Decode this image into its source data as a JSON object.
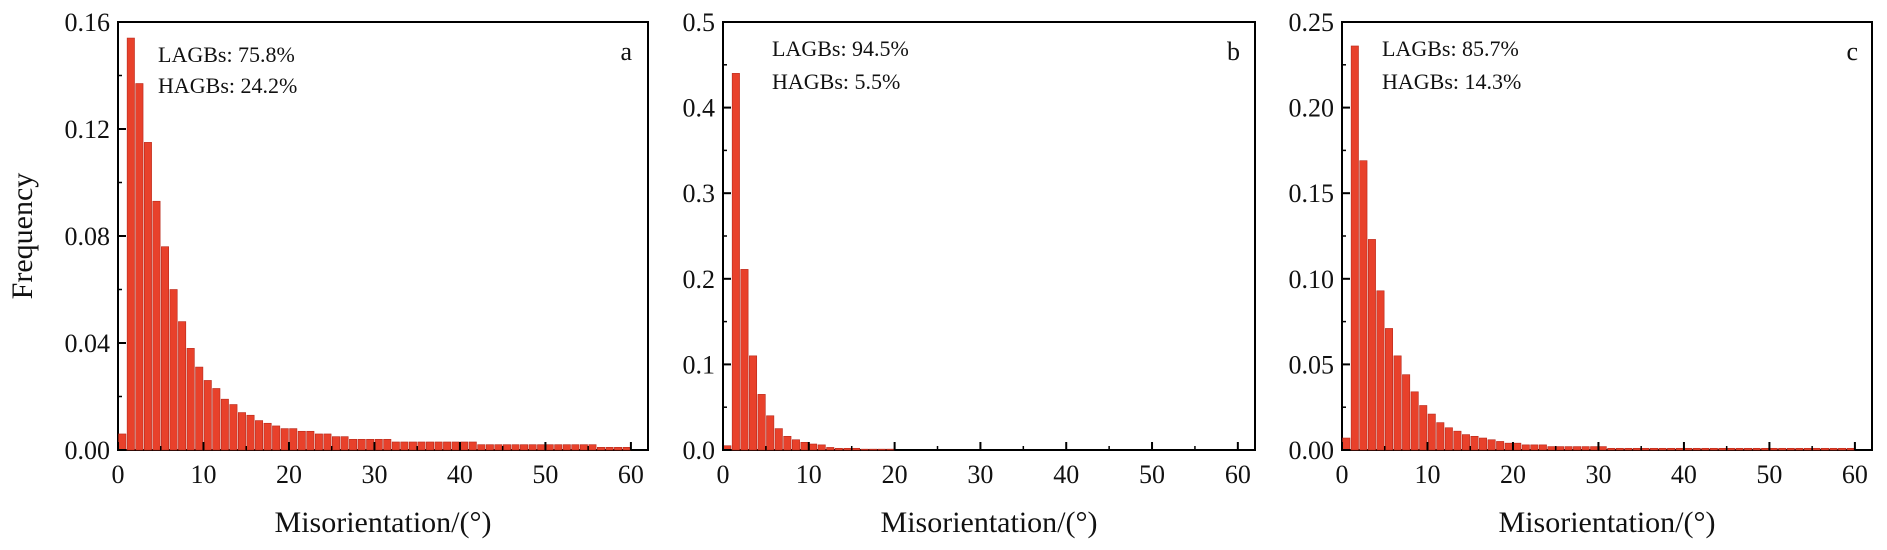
{
  "figure": {
    "bar_color": "#e8412b",
    "bar_edge_color": "#b8281a",
    "axis_color": "#000000"
  },
  "chart_data": [
    {
      "type": "bar",
      "panel": "a",
      "xlabel": "Misorientation/(°)",
      "ylabel": "Frequency",
      "xlim": [
        0,
        62
      ],
      "ylim": [
        0,
        0.16
      ],
      "xticks": [
        0,
        10,
        20,
        30,
        40,
        50,
        60
      ],
      "yticks": [
        0.0,
        0.04,
        0.08,
        0.12,
        0.16
      ],
      "ytick_labels": [
        "0.00",
        "0.04",
        "0.08",
        "0.12",
        "0.16"
      ],
      "annotations": [
        "LAGBs: 75.8%",
        "HAGBs: 24.2%"
      ],
      "bin_width": 1,
      "x": [
        0.5,
        1.5,
        2.5,
        3.5,
        4.5,
        5.5,
        6.5,
        7.5,
        8.5,
        9.5,
        10.5,
        11.5,
        12.5,
        13.5,
        14.5,
        15.5,
        16.5,
        17.5,
        18.5,
        19.5,
        20.5,
        21.5,
        22.5,
        23.5,
        24.5,
        25.5,
        26.5,
        27.5,
        28.5,
        29.5,
        30.5,
        31.5,
        32.5,
        33.5,
        34.5,
        35.5,
        36.5,
        37.5,
        38.5,
        39.5,
        40.5,
        41.5,
        42.5,
        43.5,
        44.5,
        45.5,
        46.5,
        47.5,
        48.5,
        49.5,
        50.5,
        51.5,
        52.5,
        53.5,
        54.5,
        55.5,
        56.5,
        57.5,
        58.5,
        59.5
      ],
      "values": [
        0.006,
        0.154,
        0.137,
        0.115,
        0.093,
        0.076,
        0.06,
        0.048,
        0.038,
        0.031,
        0.026,
        0.023,
        0.019,
        0.017,
        0.014,
        0.013,
        0.011,
        0.01,
        0.009,
        0.008,
        0.008,
        0.007,
        0.007,
        0.006,
        0.006,
        0.005,
        0.005,
        0.004,
        0.004,
        0.004,
        0.004,
        0.004,
        0.003,
        0.003,
        0.003,
        0.003,
        0.003,
        0.003,
        0.003,
        0.003,
        0.003,
        0.003,
        0.002,
        0.002,
        0.002,
        0.002,
        0.002,
        0.002,
        0.002,
        0.002,
        0.002,
        0.002,
        0.002,
        0.002,
        0.002,
        0.002,
        0.001,
        0.001,
        0.001,
        0.001
      ]
    },
    {
      "type": "bar",
      "panel": "b",
      "xlabel": "Misorientation/(°)",
      "ylabel": "",
      "xlim": [
        0,
        62
      ],
      "ylim": [
        0,
        0.5
      ],
      "xticks": [
        0,
        10,
        20,
        30,
        40,
        50,
        60
      ],
      "yticks": [
        0.0,
        0.1,
        0.2,
        0.3,
        0.4,
        0.5
      ],
      "ytick_labels": [
        "0.0",
        "0.1",
        "0.2",
        "0.3",
        "0.4",
        "0.5"
      ],
      "annotations": [
        "LAGBs: 94.5%",
        "HAGBs: 5.5%"
      ],
      "bin_width": 1,
      "x": [
        0.5,
        1.5,
        2.5,
        3.5,
        4.5,
        5.5,
        6.5,
        7.5,
        8.5,
        9.5,
        10.5,
        11.5,
        12.5,
        13.5,
        14.5,
        15.5,
        16.5,
        17.5,
        18.5,
        19.5
      ],
      "values": [
        0.005,
        0.44,
        0.211,
        0.11,
        0.065,
        0.04,
        0.025,
        0.016,
        0.012,
        0.009,
        0.007,
        0.006,
        0.003,
        0.002,
        0.002,
        0.002,
        0.001,
        0.001,
        0.001,
        0.001
      ]
    },
    {
      "type": "bar",
      "panel": "c",
      "xlabel": "Misorientation/(°)",
      "ylabel": "",
      "xlim": [
        0,
        62
      ],
      "ylim": [
        0,
        0.25
      ],
      "xticks": [
        0,
        10,
        20,
        30,
        40,
        50,
        60
      ],
      "yticks": [
        0.0,
        0.05,
        0.1,
        0.15,
        0.2,
        0.25
      ],
      "ytick_labels": [
        "0.00",
        "0.05",
        "0.10",
        "0.15",
        "0.20",
        "0.25"
      ],
      "annotations": [
        "LAGBs: 85.7%",
        "HAGBs: 14.3%"
      ],
      "bin_width": 1,
      "x": [
        0.5,
        1.5,
        2.5,
        3.5,
        4.5,
        5.5,
        6.5,
        7.5,
        8.5,
        9.5,
        10.5,
        11.5,
        12.5,
        13.5,
        14.5,
        15.5,
        16.5,
        17.5,
        18.5,
        19.5,
        20.5,
        21.5,
        22.5,
        23.5,
        24.5,
        25.5,
        26.5,
        27.5,
        28.5,
        29.5,
        30.5,
        31.5,
        32.5,
        33.5,
        34.5,
        35.5,
        36.5,
        37.5,
        38.5,
        39.5,
        40.5,
        41.5,
        42.5,
        43.5,
        44.5,
        45.5,
        46.5,
        47.5,
        48.5,
        49.5,
        50.5,
        51.5,
        52.5,
        53.5,
        54.5,
        55.5,
        56.5,
        57.5,
        58.5,
        59.5
      ],
      "values": [
        0.007,
        0.236,
        0.169,
        0.123,
        0.093,
        0.071,
        0.055,
        0.044,
        0.034,
        0.026,
        0.021,
        0.016,
        0.013,
        0.011,
        0.009,
        0.008,
        0.007,
        0.006,
        0.005,
        0.004,
        0.004,
        0.003,
        0.003,
        0.003,
        0.002,
        0.002,
        0.002,
        0.002,
        0.002,
        0.002,
        0.002,
        0.001,
        0.001,
        0.001,
        0.001,
        0.001,
        0.001,
        0.001,
        0.001,
        0.001,
        0.001,
        0.001,
        0.001,
        0.001,
        0.001,
        0.001,
        0.001,
        0.001,
        0.001,
        0.001,
        0.001,
        0.001,
        0.001,
        0.001,
        0.001,
        0.001,
        0.001,
        0.001,
        0.001,
        0.001
      ]
    }
  ]
}
